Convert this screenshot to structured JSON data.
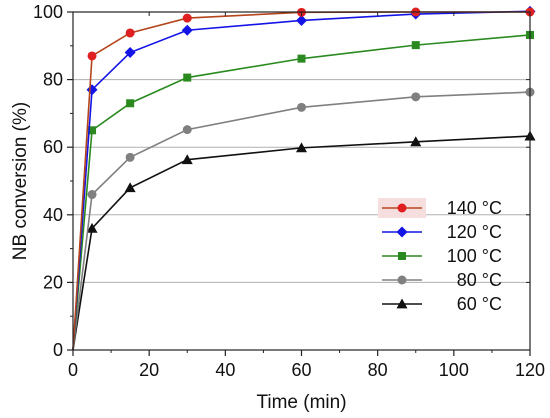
{
  "chart_data": {
    "type": "line",
    "xlabel": "Time (min)",
    "ylabel": "NB conversion (%)",
    "xlim": [
      0,
      120
    ],
    "ylim": [
      0,
      100
    ],
    "xticks": [
      0,
      20,
      40,
      60,
      80,
      100,
      120
    ],
    "yticks": [
      0,
      20,
      40,
      60,
      80,
      100
    ],
    "x": [
      0,
      5,
      15,
      30,
      60,
      90,
      120
    ],
    "grid": "horizontal",
    "legend_position": "bottom-right",
    "series": [
      {
        "name": "140 °C",
        "color": "#b5451b",
        "marker_color": "#e02020",
        "marker": "circle",
        "values": [
          0,
          87,
          93.8,
          98.2,
          99.9,
          100,
          100
        ],
        "legend_highlight": "#f7dede"
      },
      {
        "name": "120 °C",
        "color": "#1414e6",
        "marker_color": "#1414e6",
        "marker": "diamond",
        "values": [
          0,
          77,
          88,
          94.6,
          97.5,
          99.4,
          100.2
        ]
      },
      {
        "name": "100 °C",
        "color": "#2a8a1f",
        "marker_color": "#2a8a1f",
        "marker": "square",
        "values": [
          0,
          65,
          73,
          80.6,
          86.2,
          90.2,
          93.2
        ]
      },
      {
        "name": "80 °C",
        "color": "#808080",
        "marker_color": "#808080",
        "marker": "circle",
        "values": [
          0,
          46,
          57,
          65.2,
          71.8,
          74.9,
          76.3
        ]
      },
      {
        "name": "60 °C",
        "color": "#111111",
        "marker_color": "#111111",
        "marker": "triangle",
        "values": [
          0,
          36,
          48,
          56.3,
          59.8,
          61.6,
          63.3
        ]
      }
    ]
  }
}
